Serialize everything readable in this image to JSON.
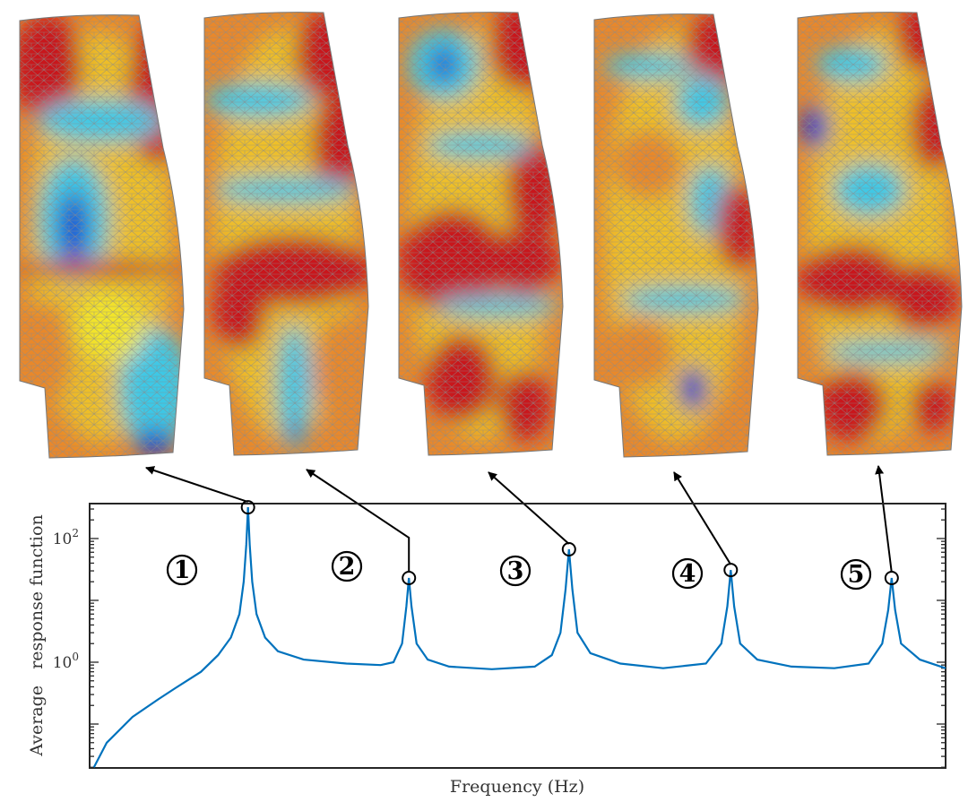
{
  "chart_data": {
    "type": "line",
    "title": "",
    "xlabel": "Frequency (Hz)",
    "ylabel": "Average   response function",
    "yscale": "log",
    "ylim": [
      0.0195,
      367
    ],
    "xlim": [
      0,
      100
    ],
    "x_tick_labels_shown": false,
    "grid": false,
    "legend": "none",
    "y_ticks": [
      {
        "value": 1,
        "label_base": "10",
        "label_exp": "0"
      },
      {
        "value": 100,
        "label_base": "10",
        "label_exp": "2"
      }
    ],
    "series": [
      {
        "color": "#0072BD",
        "x": [
          0.5,
          2,
          5,
          8,
          10,
          13,
          15,
          16.5,
          17.5,
          18,
          18.3,
          18.5,
          18.7,
          19,
          19.5,
          20.5,
          22,
          25,
          30,
          34,
          35.5,
          36.5,
          37,
          37.3,
          37.6,
          38.2,
          39.5,
          42,
          47,
          52,
          54,
          55,
          55.6,
          56,
          56.4,
          57,
          58.5,
          62,
          67,
          72,
          73.8,
          74.5,
          74.9,
          75.3,
          76,
          78,
          82,
          87,
          91,
          92.6,
          93.3,
          93.7,
          94.1,
          94.8,
          97,
          100
        ],
        "y": [
          0.02,
          0.05,
          0.13,
          0.25,
          0.38,
          0.7,
          1.3,
          2.5,
          6,
          20,
          80,
          320,
          80,
          20,
          6,
          2.5,
          1.5,
          1.1,
          0.95,
          0.9,
          1.0,
          2,
          8,
          23,
          8,
          2,
          1.1,
          0.85,
          0.77,
          0.85,
          1.3,
          3,
          15,
          67,
          15,
          3,
          1.4,
          0.95,
          0.8,
          0.95,
          2,
          8,
          31,
          8,
          2,
          1.1,
          0.85,
          0.8,
          0.95,
          2,
          7,
          23,
          7,
          2,
          1.1,
          0.8
        ]
      }
    ],
    "peaks": [
      {
        "mode": "1",
        "x": 18.5,
        "y": 320
      },
      {
        "mode": "2",
        "x": 37.3,
        "y": 23
      },
      {
        "mode": "3",
        "x": 56.0,
        "y": 67
      },
      {
        "mode": "4",
        "x": 74.9,
        "y": 31
      },
      {
        "mode": "5",
        "x": 93.7,
        "y": 23
      }
    ],
    "mode_labels": [
      "1",
      "2",
      "3",
      "4",
      "5"
    ]
  },
  "mode_shapes": {
    "count": 5,
    "colormap": "jet",
    "colors": {
      "low": "#1e2fd0",
      "cyan": "#3cc8e6",
      "mid": "#f2e52a",
      "orange": "#e8882c",
      "high": "#c8141c",
      "mesh": "#8a8a8a"
    }
  }
}
